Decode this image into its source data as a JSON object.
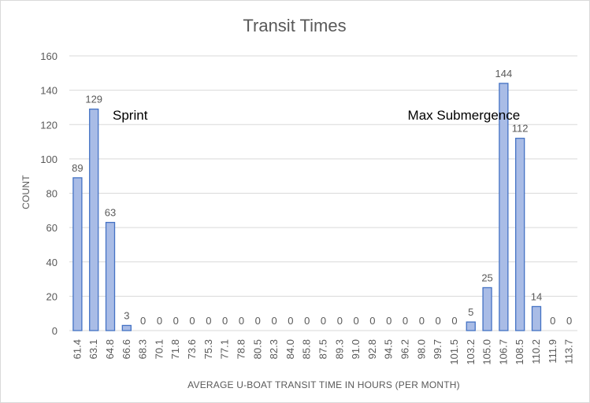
{
  "chart_data": {
    "type": "bar",
    "title": "Transit Times",
    "xlabel": "AVERAGE U-BOAT TRANSIT TIME IN HOURS (PER MONTH)",
    "ylabel": "COUNT",
    "ylim": [
      0,
      160
    ],
    "yticks": [
      "0",
      "20",
      "40",
      "60",
      "80",
      "100",
      "120",
      "140",
      "160"
    ],
    "grid": true,
    "legend": "none",
    "colors": {
      "bar_fill": "#a9bce6",
      "bar_stroke": "#4472c4",
      "grid": "#d9d9d9",
      "text": "#595959"
    },
    "categories": [
      "61.4",
      "63.1",
      "64.8",
      "66.6",
      "68.3",
      "70.1",
      "71.8",
      "73.6",
      "75.3",
      "77.1",
      "78.8",
      "80.5",
      "82.3",
      "84.0",
      "85.8",
      "87.5",
      "89.3",
      "91.0",
      "92.8",
      "94.5",
      "96.2",
      "98.0",
      "99.7",
      "101.5",
      "103.2",
      "105.0",
      "106.7",
      "108.5",
      "110.2",
      "111.9",
      "113.7"
    ],
    "values": [
      89,
      129,
      63,
      3,
      0,
      0,
      0,
      0,
      0,
      0,
      0,
      0,
      0,
      0,
      0,
      0,
      0,
      0,
      0,
      0,
      0,
      0,
      0,
      0,
      5,
      25,
      144,
      112,
      14,
      0,
      0
    ],
    "annotations": [
      {
        "text": "Sprint",
        "category_index": 2,
        "y": 126
      },
      {
        "text": "Max Submergence",
        "category_index": 20,
        "y": 126
      }
    ]
  }
}
